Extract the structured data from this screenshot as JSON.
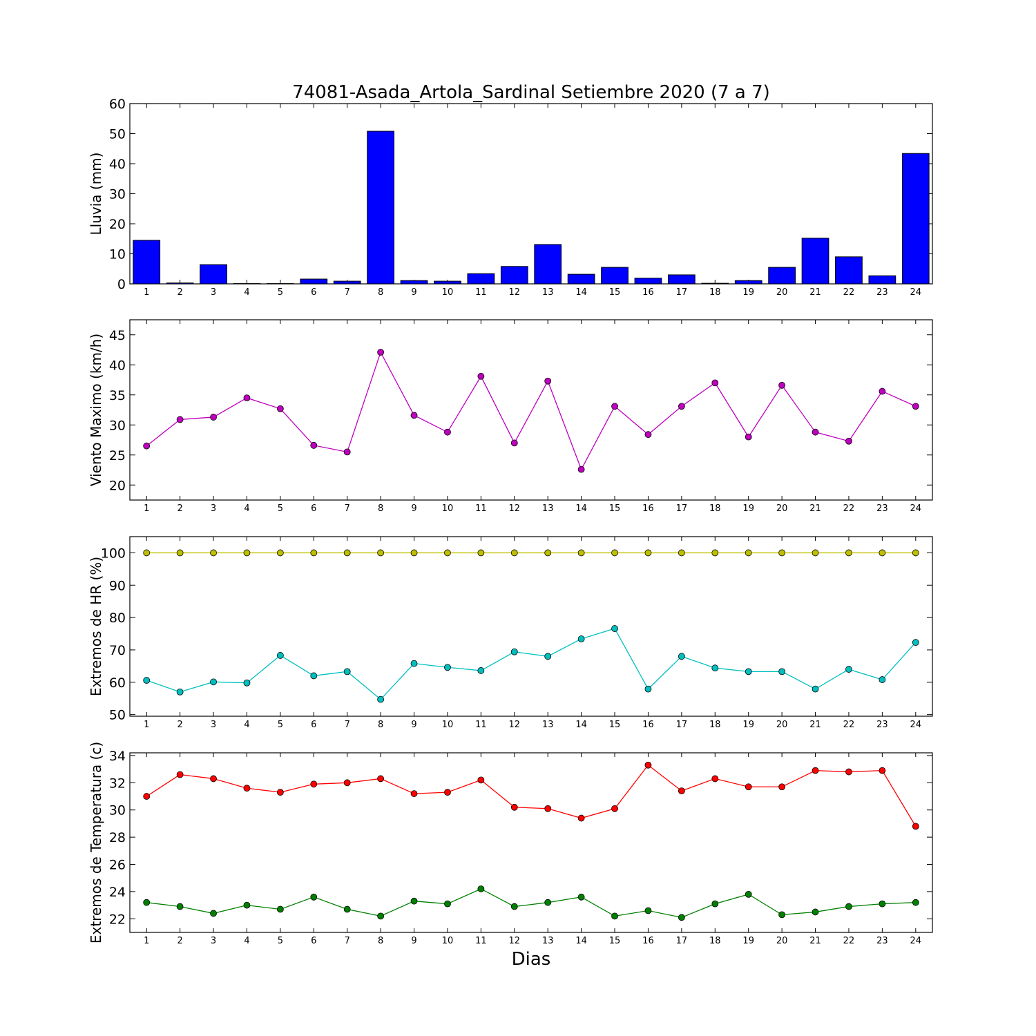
{
  "figure": {
    "title": "74081-Asada_Artola_Sardinal Setiembre 2020  (7 a 7)",
    "xlabel": "Dias"
  },
  "chart_data": [
    {
      "type": "bar",
      "ylabel": "Lluvia (mm)",
      "ylim": [
        0,
        60
      ],
      "yticks": [
        0,
        10,
        20,
        30,
        40,
        50,
        60
      ],
      "categories": [
        "1",
        "2",
        "3",
        "4",
        "5",
        "6",
        "7",
        "8",
        "9",
        "10",
        "11",
        "12",
        "13",
        "14",
        "15",
        "16",
        "17",
        "18",
        "19",
        "20",
        "21",
        "22",
        "23",
        "24"
      ],
      "grid": false,
      "series": [
        {
          "color": "#0000ff",
          "values": [
            14.5,
            0.3,
            6.4,
            0.1,
            0.1,
            1.6,
            0.9,
            50.8,
            1.1,
            0.9,
            3.4,
            5.8,
            13.1,
            3.2,
            5.5,
            1.9,
            3.0,
            0.2,
            1.1,
            5.5,
            15.2,
            9.0,
            2.7,
            43.4
          ]
        }
      ]
    },
    {
      "type": "line",
      "ylabel": "Viento Maximo (km/h)",
      "ylim": [
        17.5,
        47.5
      ],
      "yticks": [
        20,
        25,
        30,
        35,
        40,
        45
      ],
      "categories": [
        "1",
        "2",
        "3",
        "4",
        "5",
        "6",
        "7",
        "8",
        "9",
        "10",
        "11",
        "12",
        "13",
        "14",
        "15",
        "16",
        "17",
        "18",
        "19",
        "20",
        "21",
        "22",
        "23",
        "24"
      ],
      "grid": false,
      "series": [
        {
          "color": "#bf00bf",
          "values": [
            26.5,
            30.9,
            31.3,
            34.5,
            32.7,
            26.6,
            25.5,
            42.1,
            31.6,
            28.8,
            38.1,
            27.0,
            37.3,
            22.6,
            33.1,
            28.4,
            33.1,
            37.0,
            28.0,
            36.6,
            28.8,
            27.3,
            35.6,
            33.1
          ]
        }
      ]
    },
    {
      "type": "line",
      "ylabel": "Extremos de HR (%)",
      "ylim": [
        49.5,
        105
      ],
      "yticks": [
        50,
        60,
        70,
        80,
        90,
        100
      ],
      "categories": [
        "1",
        "2",
        "3",
        "4",
        "5",
        "6",
        "7",
        "8",
        "9",
        "10",
        "11",
        "12",
        "13",
        "14",
        "15",
        "16",
        "17",
        "18",
        "19",
        "20",
        "21",
        "22",
        "23",
        "24"
      ],
      "grid": false,
      "series": [
        {
          "color": "#bfbf00",
          "values": [
            100,
            100,
            100,
            100,
            100,
            100,
            100,
            100,
            100,
            100,
            100,
            100,
            100,
            100,
            100,
            100,
            100,
            100,
            100,
            100,
            100,
            100,
            100,
            100
          ]
        },
        {
          "color": "#00bfbf",
          "values": [
            60.6,
            57.0,
            60.1,
            59.8,
            68.3,
            62.0,
            63.3,
            54.7,
            65.8,
            64.6,
            63.6,
            69.4,
            68.0,
            73.4,
            76.6,
            57.9,
            68.0,
            64.4,
            63.3,
            63.3,
            57.9,
            64.0,
            60.8,
            72.3
          ]
        }
      ]
    },
    {
      "type": "line",
      "ylabel": "Extremos de Temperatura (c)",
      "ylim": [
        21,
        34.2
      ],
      "yticks": [
        22,
        24,
        26,
        28,
        30,
        32,
        34
      ],
      "categories": [
        "1",
        "2",
        "3",
        "4",
        "5",
        "6",
        "7",
        "8",
        "9",
        "10",
        "11",
        "12",
        "13",
        "14",
        "15",
        "16",
        "17",
        "18",
        "19",
        "20",
        "21",
        "22",
        "23",
        "24"
      ],
      "grid": false,
      "series": [
        {
          "color": "#ff0000",
          "values": [
            31.0,
            32.6,
            32.3,
            31.6,
            31.3,
            31.9,
            32.0,
            32.3,
            31.2,
            31.3,
            32.2,
            30.2,
            30.1,
            29.4,
            30.1,
            33.3,
            31.4,
            32.3,
            31.7,
            31.7,
            32.9,
            32.8,
            32.9,
            28.8
          ]
        },
        {
          "color": "#008000",
          "values": [
            23.2,
            22.9,
            22.4,
            23.0,
            22.7,
            23.6,
            22.7,
            22.2,
            23.3,
            23.1,
            24.2,
            22.9,
            23.2,
            23.6,
            22.2,
            22.6,
            22.1,
            23.1,
            23.8,
            22.3,
            22.5,
            22.9,
            23.1,
            23.2
          ]
        }
      ]
    }
  ]
}
